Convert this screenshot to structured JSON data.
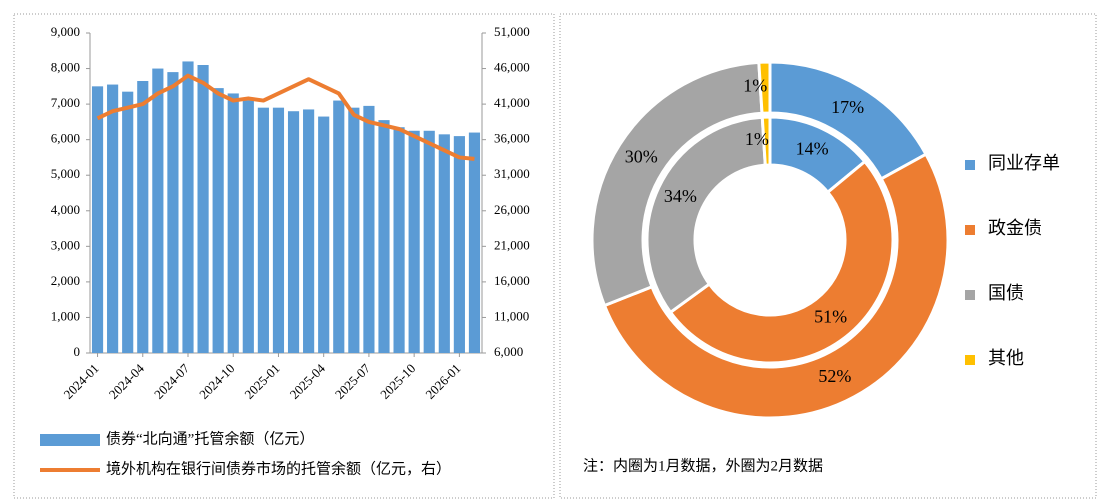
{
  "chart_data": [
    {
      "type": "bar-line",
      "categories": [
        "2024-01",
        null,
        null,
        "2024-04",
        null,
        null,
        "2024-07",
        null,
        null,
        "2024-10",
        null,
        null,
        "2025-01",
        null,
        null,
        "2025-04",
        null,
        null,
        "2025-07",
        null,
        null,
        "2025-10",
        null,
        null,
        "2026-01",
        null
      ],
      "series": [
        {
          "name": "债券“北向通”托管余额（亿元）",
          "type": "bar",
          "color": "#5b9bd5",
          "values": [
            7500,
            7550,
            7350,
            7650,
            8000,
            7900,
            8200,
            8100,
            7450,
            7300,
            7100,
            6900,
            6900,
            6800,
            6850,
            6650,
            7100,
            6900,
            6950,
            6550,
            6350,
            6250,
            6250,
            6150,
            6100,
            6200
          ]
        },
        {
          "name": "境外机构在银行间债券市场的托管余额（亿元，右）",
          "type": "line",
          "color": "#ed7d31",
          "axis": "y2",
          "values": [
            39000,
            40000,
            40500,
            41000,
            42500,
            43500,
            45000,
            44000,
            42500,
            41500,
            41800,
            41500,
            42500,
            43500,
            44500,
            43500,
            42500,
            39500,
            38500,
            38000,
            37500,
            36500,
            35500,
            34500,
            33500,
            33300
          ]
        }
      ],
      "ylim": [
        0,
        9000
      ],
      "yticks": [
        0,
        {
          "value": 1000,
          "label": "1,000"
        },
        {
          "value": 2000,
          "label": "2,000"
        },
        {
          "value": 3000,
          "label": "3,000"
        },
        {
          "value": 4000,
          "label": "4,000"
        },
        {
          "value": 5000,
          "label": "5,000"
        },
        {
          "value": 6000,
          "label": "6,000"
        },
        {
          "value": 7000,
          "label": "7,000"
        },
        {
          "value": 8000,
          "label": "8,000"
        },
        {
          "value": 9000,
          "label": "9,000"
        }
      ],
      "y2lim": [
        6000,
        51000
      ],
      "y2ticks": [
        {
          "value": 6000,
          "label": "6,000"
        },
        {
          "value": 11000,
          "label": "11,000"
        },
        {
          "value": 16000,
          "label": "16,000"
        },
        {
          "value": 21000,
          "label": "21,000"
        },
        {
          "value": 26000,
          "label": "26,000"
        },
        {
          "value": 31000,
          "label": "31,000"
        },
        {
          "value": 36000,
          "label": "36,000"
        },
        {
          "value": 41000,
          "label": "41,000"
        },
        {
          "value": 46000,
          "label": "46,000"
        },
        {
          "value": 51000,
          "label": "51,000"
        }
      ],
      "legend": "bottom"
    },
    {
      "type": "doughnut",
      "categories": [
        "同业存单",
        "政金债",
        "国债",
        "其他"
      ],
      "colors": [
        "#5b9bd5",
        "#ed7d31",
        "#a5a5a5",
        "#ffc000"
      ],
      "series": [
        {
          "values": [
            14,
            51,
            34,
            1
          ],
          "value_labels": [
            "14%",
            "51%",
            "34%",
            "1%"
          ]
        },
        {
          "values": [
            17,
            52,
            30,
            1
          ],
          "value_labels": [
            "17%",
            "52%",
            "30%",
            "1%"
          ]
        }
      ],
      "note": "注：内圈为1月数据，外圈为2月数据",
      "legend": "right"
    }
  ]
}
